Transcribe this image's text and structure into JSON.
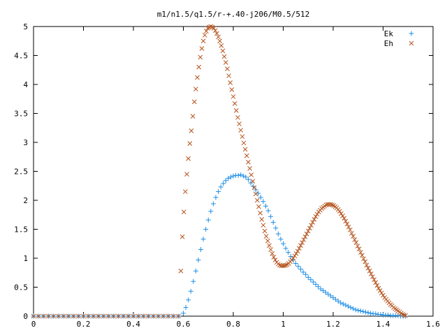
{
  "chart_data": {
    "type": "scatter",
    "title": "m1/n1.5/q1.5/r-+.40-j206/M0.5/512",
    "xlabel": "",
    "ylabel": "",
    "xlim": [
      0,
      1.6
    ],
    "ylim": [
      0,
      5
    ],
    "x_ticks": [
      "0",
      "0.2",
      "0.4",
      "0.6",
      "0.8",
      "1",
      "1.2",
      "1.4",
      "1.6"
    ],
    "y_ticks": [
      "0",
      "0.5",
      "1",
      "1.5",
      "2",
      "2.5",
      "3",
      "3.5",
      "4",
      "4.5",
      "5"
    ],
    "grid": false,
    "legend_position": "top-right",
    "colors": {
      "Ek": "#1f8fe6",
      "Eh": "#b5541e"
    },
    "series": [
      {
        "name": "Ek",
        "marker": "plus",
        "points": [
          [
            0.0,
            0
          ],
          [
            0.02,
            0
          ],
          [
            0.04,
            0
          ],
          [
            0.06,
            0
          ],
          [
            0.08,
            0
          ],
          [
            0.1,
            0
          ],
          [
            0.12,
            0
          ],
          [
            0.14,
            0
          ],
          [
            0.16,
            0
          ],
          [
            0.18,
            0
          ],
          [
            0.2,
            0
          ],
          [
            0.22,
            0
          ],
          [
            0.24,
            0
          ],
          [
            0.26,
            0
          ],
          [
            0.28,
            0
          ],
          [
            0.3,
            0
          ],
          [
            0.32,
            0
          ],
          [
            0.34,
            0
          ],
          [
            0.36,
            0
          ],
          [
            0.38,
            0
          ],
          [
            0.4,
            0
          ],
          [
            0.42,
            0
          ],
          [
            0.44,
            0
          ],
          [
            0.46,
            0
          ],
          [
            0.48,
            0
          ],
          [
            0.5,
            0
          ],
          [
            0.52,
            0
          ],
          [
            0.54,
            0
          ],
          [
            0.56,
            0
          ],
          [
            0.58,
            0
          ],
          [
            0.6,
            0.05
          ],
          [
            0.61,
            0.15
          ],
          [
            0.62,
            0.28
          ],
          [
            0.63,
            0.43
          ],
          [
            0.64,
            0.6
          ],
          [
            0.65,
            0.78
          ],
          [
            0.66,
            0.97
          ],
          [
            0.67,
            1.15
          ],
          [
            0.68,
            1.33
          ],
          [
            0.69,
            1.5
          ],
          [
            0.7,
            1.66
          ],
          [
            0.71,
            1.81
          ],
          [
            0.72,
            1.94
          ],
          [
            0.73,
            2.05
          ],
          [
            0.74,
            2.15
          ],
          [
            0.75,
            2.23
          ],
          [
            0.76,
            2.29
          ],
          [
            0.77,
            2.34
          ],
          [
            0.78,
            2.38
          ],
          [
            0.79,
            2.4
          ],
          [
            0.8,
            2.42
          ],
          [
            0.81,
            2.43
          ],
          [
            0.82,
            2.43
          ],
          [
            0.83,
            2.44
          ],
          [
            0.84,
            2.42
          ],
          [
            0.85,
            2.4
          ],
          [
            0.86,
            2.36
          ],
          [
            0.87,
            2.3
          ],
          [
            0.88,
            2.24
          ],
          [
            0.89,
            2.18
          ],
          [
            0.9,
            2.12
          ],
          [
            0.91,
            2.05
          ],
          [
            0.92,
            1.98
          ],
          [
            0.93,
            1.9
          ],
          [
            0.94,
            1.82
          ],
          [
            0.95,
            1.72
          ],
          [
            0.96,
            1.62
          ],
          [
            0.97,
            1.52
          ],
          [
            0.98,
            1.42
          ],
          [
            0.99,
            1.33
          ],
          [
            1.0,
            1.25
          ],
          [
            1.01,
            1.17
          ],
          [
            1.02,
            1.1
          ],
          [
            1.03,
            1.03
          ],
          [
            1.04,
            0.97
          ],
          [
            1.05,
            0.91
          ],
          [
            1.06,
            0.86
          ],
          [
            1.07,
            0.81
          ],
          [
            1.08,
            0.76
          ],
          [
            1.09,
            0.72
          ],
          [
            1.1,
            0.67
          ],
          [
            1.11,
            0.63
          ],
          [
            1.12,
            0.59
          ],
          [
            1.13,
            0.55
          ],
          [
            1.14,
            0.51
          ],
          [
            1.15,
            0.47
          ],
          [
            1.16,
            0.44
          ],
          [
            1.17,
            0.41
          ],
          [
            1.18,
            0.38
          ],
          [
            1.19,
            0.35
          ],
          [
            1.2,
            0.32
          ],
          [
            1.21,
            0.29
          ],
          [
            1.22,
            0.26
          ],
          [
            1.23,
            0.23
          ],
          [
            1.24,
            0.21
          ],
          [
            1.25,
            0.19
          ],
          [
            1.26,
            0.17
          ],
          [
            1.27,
            0.15
          ],
          [
            1.28,
            0.13
          ],
          [
            1.29,
            0.11
          ],
          [
            1.3,
            0.1
          ],
          [
            1.31,
            0.09
          ],
          [
            1.32,
            0.08
          ],
          [
            1.33,
            0.07
          ],
          [
            1.34,
            0.06
          ],
          [
            1.35,
            0.05
          ],
          [
            1.36,
            0.04
          ],
          [
            1.37,
            0.04
          ],
          [
            1.38,
            0.03
          ],
          [
            1.39,
            0.03
          ],
          [
            1.4,
            0.02
          ],
          [
            1.41,
            0.02
          ],
          [
            1.42,
            0.02
          ],
          [
            1.43,
            0.01
          ],
          [
            1.44,
            0.01
          ],
          [
            1.45,
            0.01
          ],
          [
            1.46,
            0.01
          ],
          [
            1.47,
            0.0
          ],
          [
            1.48,
            0.0
          ],
          [
            1.49,
            0.0
          ]
        ]
      },
      {
        "name": "Eh",
        "marker": "cross",
        "points": [
          [
            0.0,
            0
          ],
          [
            0.02,
            0
          ],
          [
            0.04,
            0
          ],
          [
            0.06,
            0
          ],
          [
            0.08,
            0
          ],
          [
            0.1,
            0
          ],
          [
            0.12,
            0
          ],
          [
            0.14,
            0
          ],
          [
            0.16,
            0
          ],
          [
            0.18,
            0
          ],
          [
            0.2,
            0
          ],
          [
            0.22,
            0
          ],
          [
            0.24,
            0
          ],
          [
            0.26,
            0
          ],
          [
            0.28,
            0
          ],
          [
            0.3,
            0
          ],
          [
            0.32,
            0
          ],
          [
            0.34,
            0
          ],
          [
            0.36,
            0
          ],
          [
            0.38,
            0
          ],
          [
            0.4,
            0
          ],
          [
            0.42,
            0
          ],
          [
            0.44,
            0
          ],
          [
            0.46,
            0
          ],
          [
            0.48,
            0
          ],
          [
            0.5,
            0
          ],
          [
            0.52,
            0
          ],
          [
            0.54,
            0
          ],
          [
            0.56,
            0
          ],
          [
            0.58,
            0
          ],
          [
            0.59,
            0.78
          ],
          [
            0.596,
            1.37
          ],
          [
            0.602,
            1.8
          ],
          [
            0.608,
            2.15
          ],
          [
            0.614,
            2.45
          ],
          [
            0.62,
            2.72
          ],
          [
            0.626,
            2.98
          ],
          [
            0.632,
            3.2
          ],
          [
            0.638,
            3.45
          ],
          [
            0.644,
            3.7
          ],
          [
            0.65,
            3.92
          ],
          [
            0.656,
            4.12
          ],
          [
            0.662,
            4.3
          ],
          [
            0.668,
            4.47
          ],
          [
            0.674,
            4.62
          ],
          [
            0.68,
            4.75
          ],
          [
            0.686,
            4.85
          ],
          [
            0.692,
            4.92
          ],
          [
            0.698,
            4.97
          ],
          [
            0.704,
            4.99
          ],
          [
            0.71,
            5.0
          ],
          [
            0.716,
            4.99
          ],
          [
            0.722,
            4.97
          ],
          [
            0.728,
            4.93
          ],
          [
            0.734,
            4.88
          ],
          [
            0.74,
            4.82
          ],
          [
            0.746,
            4.75
          ],
          [
            0.752,
            4.67
          ],
          [
            0.758,
            4.58
          ],
          [
            0.764,
            4.48
          ],
          [
            0.77,
            4.38
          ],
          [
            0.776,
            4.27
          ],
          [
            0.782,
            4.15
          ],
          [
            0.788,
            4.03
          ],
          [
            0.794,
            3.91
          ],
          [
            0.8,
            3.79
          ],
          [
            0.806,
            3.67
          ],
          [
            0.812,
            3.55
          ],
          [
            0.818,
            3.43
          ],
          [
            0.824,
            3.32
          ],
          [
            0.83,
            3.21
          ],
          [
            0.836,
            3.1
          ],
          [
            0.842,
            2.99
          ],
          [
            0.848,
            2.88
          ],
          [
            0.854,
            2.77
          ],
          [
            0.86,
            2.66
          ],
          [
            0.866,
            2.55
          ],
          [
            0.872,
            2.44
          ],
          [
            0.878,
            2.33
          ],
          [
            0.884,
            2.22
          ],
          [
            0.89,
            2.11
          ],
          [
            0.896,
            2.0
          ],
          [
            0.902,
            1.89
          ],
          [
            0.908,
            1.78
          ],
          [
            0.914,
            1.67
          ],
          [
            0.92,
            1.57
          ],
          [
            0.926,
            1.47
          ],
          [
            0.932,
            1.38
          ],
          [
            0.938,
            1.3
          ],
          [
            0.944,
            1.22
          ],
          [
            0.95,
            1.15
          ],
          [
            0.956,
            1.08
          ],
          [
            0.962,
            1.02
          ],
          [
            0.968,
            0.97
          ],
          [
            0.974,
            0.93
          ],
          [
            0.98,
            0.9
          ],
          [
            0.986,
            0.88
          ],
          [
            0.992,
            0.87
          ],
          [
            0.998,
            0.87
          ],
          [
            1.004,
            0.87
          ],
          [
            1.01,
            0.88
          ],
          [
            1.016,
            0.89
          ],
          [
            1.022,
            0.91
          ],
          [
            1.028,
            0.94
          ],
          [
            1.034,
            0.97
          ],
          [
            1.04,
            1.0
          ],
          [
            1.046,
            1.04
          ],
          [
            1.052,
            1.08
          ],
          [
            1.058,
            1.12
          ],
          [
            1.064,
            1.17
          ],
          [
            1.07,
            1.22
          ],
          [
            1.076,
            1.27
          ],
          [
            1.082,
            1.32
          ],
          [
            1.088,
            1.37
          ],
          [
            1.094,
            1.42
          ],
          [
            1.1,
            1.47
          ],
          [
            1.106,
            1.52
          ],
          [
            1.112,
            1.57
          ],
          [
            1.118,
            1.62
          ],
          [
            1.124,
            1.67
          ],
          [
            1.13,
            1.72
          ],
          [
            1.136,
            1.76
          ],
          [
            1.142,
            1.8
          ],
          [
            1.148,
            1.83
          ],
          [
            1.154,
            1.86
          ],
          [
            1.16,
            1.88
          ],
          [
            1.166,
            1.9
          ],
          [
            1.172,
            1.92
          ],
          [
            1.178,
            1.93
          ],
          [
            1.184,
            1.93
          ],
          [
            1.19,
            1.93
          ],
          [
            1.196,
            1.92
          ],
          [
            1.202,
            1.91
          ],
          [
            1.208,
            1.89
          ],
          [
            1.214,
            1.87
          ],
          [
            1.22,
            1.84
          ],
          [
            1.226,
            1.81
          ],
          [
            1.232,
            1.77
          ],
          [
            1.238,
            1.73
          ],
          [
            1.244,
            1.69
          ],
          [
            1.25,
            1.64
          ],
          [
            1.256,
            1.59
          ],
          [
            1.262,
            1.54
          ],
          [
            1.268,
            1.49
          ],
          [
            1.274,
            1.43
          ],
          [
            1.28,
            1.38
          ],
          [
            1.286,
            1.32
          ],
          [
            1.292,
            1.27
          ],
          [
            1.298,
            1.21
          ],
          [
            1.304,
            1.16
          ],
          [
            1.31,
            1.1
          ],
          [
            1.316,
            1.05
          ],
          [
            1.322,
            0.99
          ],
          [
            1.328,
            0.94
          ],
          [
            1.334,
            0.88
          ],
          [
            1.34,
            0.83
          ],
          [
            1.346,
            0.78
          ],
          [
            1.352,
            0.73
          ],
          [
            1.358,
            0.68
          ],
          [
            1.364,
            0.63
          ],
          [
            1.37,
            0.58
          ],
          [
            1.376,
            0.53
          ],
          [
            1.382,
            0.48
          ],
          [
            1.388,
            0.44
          ],
          [
            1.394,
            0.4
          ],
          [
            1.4,
            0.36
          ],
          [
            1.406,
            0.32
          ],
          [
            1.412,
            0.29
          ],
          [
            1.418,
            0.26
          ],
          [
            1.424,
            0.23
          ],
          [
            1.43,
            0.2
          ],
          [
            1.436,
            0.18
          ],
          [
            1.442,
            0.15
          ],
          [
            1.448,
            0.13
          ],
          [
            1.454,
            0.11
          ],
          [
            1.46,
            0.09
          ],
          [
            1.466,
            0.07
          ],
          [
            1.472,
            0.05
          ],
          [
            1.478,
            0.03
          ],
          [
            1.484,
            0.02
          ],
          [
            1.49,
            0.01
          ]
        ]
      }
    ]
  }
}
